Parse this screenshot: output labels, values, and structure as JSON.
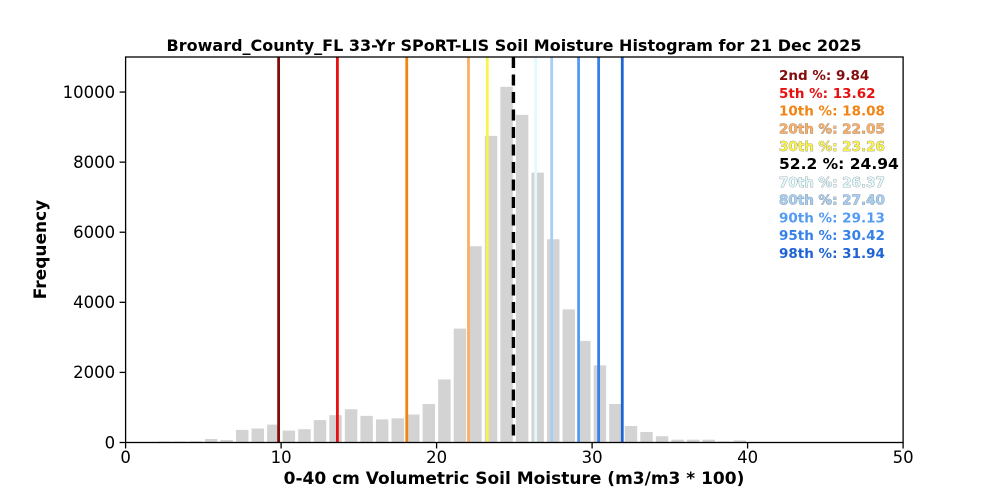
{
  "figure_title": "Broward_County_FL 33-Yr SPoRT-LIS Soil Moisture Histogram for 21 Dec 2025",
  "chart_data": {
    "type": "bar",
    "subtype": "histogram",
    "title": "Broward_County_FL 33-Yr SPoRT-LIS Soil Moisture Histogram for 21 Dec 2025",
    "xlabel": "0-40 cm Volumetric Soil Moisture (m3/m3 * 100)",
    "ylabel": "Frequency",
    "xlim": [
      0,
      50
    ],
    "ylim": [
      0,
      11000
    ],
    "xticks": [
      0,
      10,
      20,
      30,
      40,
      50
    ],
    "yticks": [
      0,
      2000,
      4000,
      6000,
      8000,
      10000
    ],
    "grid": false,
    "legend_position": "upper-right-inside",
    "bar_color": "#d3d3d3",
    "bin_width": 1,
    "bar_rel_width": 0.8,
    "bin_centers": [
      2.5,
      3.5,
      4.5,
      5.5,
      6.5,
      7.5,
      8.5,
      9.5,
      10.5,
      11.5,
      12.5,
      13.5,
      14.5,
      15.5,
      16.5,
      17.5,
      18.5,
      19.5,
      20.5,
      21.5,
      22.5,
      23.5,
      24.5,
      25.5,
      26.5,
      27.5,
      28.5,
      29.5,
      30.5,
      31.5,
      32.5,
      33.5,
      34.5,
      35.5,
      36.5,
      37.5,
      38.5,
      39.5
    ],
    "frequencies": [
      30,
      30,
      35,
      100,
      70,
      360,
      400,
      510,
      340,
      380,
      640,
      780,
      950,
      760,
      660,
      690,
      800,
      1100,
      1800,
      3250,
      5600,
      8750,
      10150,
      9350,
      7700,
      5800,
      3800,
      2900,
      2200,
      1100,
      470,
      300,
      180,
      80,
      80,
      80,
      30,
      60
    ],
    "percentile_lines": [
      {
        "id": "p02",
        "label": "2nd %",
        "value": 9.84,
        "legend_text": "2nd %: 9.84",
        "color": "#830d0d",
        "style": "solid",
        "outline": false,
        "emphasis": false
      },
      {
        "id": "p05",
        "label": "5th %",
        "value": 13.62,
        "legend_text": "5th %: 13.62",
        "color": "#e81010",
        "style": "solid",
        "outline": false,
        "emphasis": false
      },
      {
        "id": "p10",
        "label": "10th %",
        "value": 18.08,
        "legend_text": "10th %: 18.08",
        "color": "#f28413",
        "style": "solid",
        "outline": false,
        "emphasis": false
      },
      {
        "id": "p20",
        "label": "20th %",
        "value": 22.05,
        "legend_text": "20th %: 22.05",
        "color": "#fbaf66",
        "style": "solid",
        "outline": true,
        "emphasis": false
      },
      {
        "id": "p30",
        "label": "30th %",
        "value": 23.26,
        "legend_text": "30th %: 23.26",
        "color": "#faf34e",
        "style": "solid",
        "outline": true,
        "emphasis": false
      },
      {
        "id": "p52",
        "label": "52.2 %",
        "value": 24.94,
        "legend_text": "52.2 %: 24.94",
        "color": "#000000",
        "style": "dashed",
        "outline": false,
        "emphasis": true
      },
      {
        "id": "p70",
        "label": "70th %",
        "value": 26.37,
        "legend_text": "70th %: 26.37",
        "color": "#e0faff",
        "style": "solid",
        "outline": true,
        "emphasis": false
      },
      {
        "id": "p80",
        "label": "80th %",
        "value": 27.4,
        "legend_text": "80th %: 27.40",
        "color": "#a6cff5",
        "style": "solid",
        "outline": true,
        "emphasis": false
      },
      {
        "id": "p90",
        "label": "90th %",
        "value": 29.13,
        "legend_text": "90th %: 29.13",
        "color": "#549bf4",
        "style": "solid",
        "outline": false,
        "emphasis": false
      },
      {
        "id": "p95",
        "label": "95th %",
        "value": 30.42,
        "legend_text": "95th %: 30.42",
        "color": "#3580ea",
        "style": "solid",
        "outline": false,
        "emphasis": false
      },
      {
        "id": "p98",
        "label": "98th %",
        "value": 31.94,
        "legend_text": "98th %: 31.94",
        "color": "#1e63d4",
        "style": "solid",
        "outline": false,
        "emphasis": false
      }
    ]
  }
}
